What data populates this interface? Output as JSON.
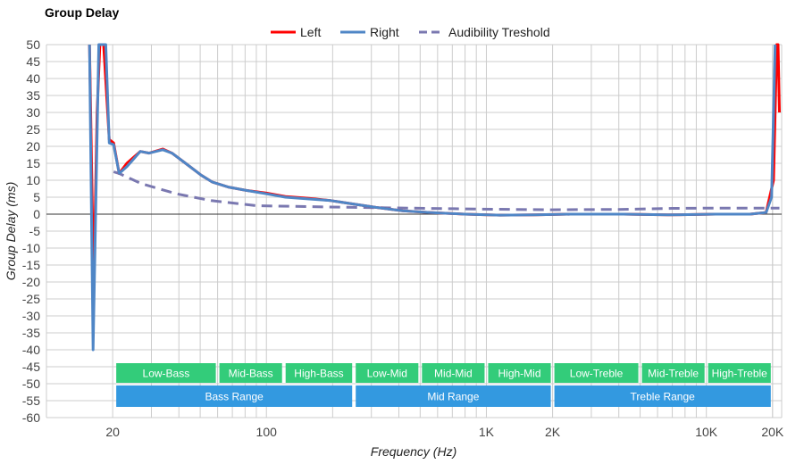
{
  "chart_data": {
    "type": "line",
    "title": "Group Delay",
    "xlabel": "Frequency (Hz)",
    "ylabel": "Group Delay (ms)",
    "x_scale": "log",
    "xlim": [
      10,
      22000
    ],
    "ylim": [
      -60,
      50
    ],
    "grid": true,
    "legend_placement": "top",
    "y_ticks": [
      50,
      45,
      40,
      35,
      30,
      25,
      20,
      15,
      10,
      5,
      0,
      -5,
      -10,
      -15,
      -20,
      -25,
      -30,
      -35,
      -40,
      -45,
      -50,
      -55,
      -60
    ],
    "x_ticks": [
      {
        "v": 20,
        "label": "20"
      },
      {
        "v": 100,
        "label": "100"
      },
      {
        "v": 1000,
        "label": "1K"
      },
      {
        "v": 2000,
        "label": "2K"
      },
      {
        "v": 10000,
        "label": "10K"
      },
      {
        "v": 20000,
        "label": "20K"
      }
    ],
    "series": [
      {
        "name": "Left",
        "color": "#ff0000",
        "style": "solid",
        "points": [
          [
            15.7,
            50
          ],
          [
            16.4,
            -22
          ],
          [
            17.0,
            30
          ],
          [
            17.5,
            50
          ],
          [
            18.2,
            50
          ],
          [
            19.3,
            22
          ],
          [
            20.2,
            21
          ],
          [
            21.4,
            12
          ],
          [
            23.2,
            15
          ],
          [
            26.7,
            18.5
          ],
          [
            29.3,
            18
          ],
          [
            33.8,
            19.2
          ],
          [
            37.2,
            18
          ],
          [
            42.9,
            15
          ],
          [
            50.5,
            11.5
          ],
          [
            56.6,
            9.5
          ],
          [
            67,
            8
          ],
          [
            81,
            7
          ],
          [
            100,
            6.2
          ],
          [
            122,
            5.2
          ],
          [
            154,
            4.7
          ],
          [
            196,
            4
          ],
          [
            248,
            3
          ],
          [
            314,
            2
          ],
          [
            416,
            1
          ],
          [
            549,
            0.5
          ],
          [
            796,
            0
          ],
          [
            1155,
            -0.3
          ],
          [
            1667,
            -0.2
          ],
          [
            2404,
            0
          ],
          [
            4200,
            0
          ],
          [
            6700,
            -0.2
          ],
          [
            11000,
            0
          ],
          [
            15800,
            0
          ],
          [
            18700,
            0.5
          ],
          [
            20200,
            10
          ],
          [
            20900,
            50
          ],
          [
            21200,
            50
          ],
          [
            21500,
            30
          ]
        ]
      },
      {
        "name": "Right",
        "color": "#4f86c6",
        "style": "solid",
        "points": [
          [
            15.7,
            50
          ],
          [
            16.3,
            -40
          ],
          [
            17.3,
            50
          ],
          [
            18.6,
            50
          ],
          [
            19.3,
            21
          ],
          [
            20.2,
            20.5
          ],
          [
            21.4,
            12
          ],
          [
            23.2,
            14
          ],
          [
            26.7,
            18.5
          ],
          [
            29.3,
            18
          ],
          [
            33.8,
            19
          ],
          [
            37.2,
            18
          ],
          [
            42.9,
            15
          ],
          [
            50.5,
            11.5
          ],
          [
            56.6,
            9.5
          ],
          [
            67,
            8
          ],
          [
            81,
            7
          ],
          [
            100,
            6
          ],
          [
            122,
            5
          ],
          [
            154,
            4.5
          ],
          [
            196,
            4
          ],
          [
            248,
            3
          ],
          [
            314,
            2
          ],
          [
            416,
            1
          ],
          [
            549,
            0.5
          ],
          [
            796,
            0
          ],
          [
            1155,
            -0.3
          ],
          [
            1667,
            -0.2
          ],
          [
            2404,
            0
          ],
          [
            4200,
            0
          ],
          [
            6700,
            -0.2
          ],
          [
            11000,
            0
          ],
          [
            15800,
            0
          ],
          [
            18700,
            0.5
          ],
          [
            19800,
            5
          ],
          [
            20550,
            50
          ]
        ]
      },
      {
        "name": "Audibility Treshold",
        "color": "#7a78b0",
        "style": "dashed",
        "points": [
          [
            20.2,
            12.5
          ],
          [
            21.4,
            12
          ],
          [
            27,
            9
          ],
          [
            39,
            6
          ],
          [
            56,
            4
          ],
          [
            90,
            2.5
          ],
          [
            158,
            2.2
          ],
          [
            250,
            2
          ],
          [
            440,
            1.8
          ],
          [
            920,
            1.5
          ],
          [
            1900,
            1.3
          ],
          [
            4000,
            1.4
          ],
          [
            7000,
            1.7
          ],
          [
            11000,
            1.8
          ],
          [
            21500,
            1.8
          ]
        ]
      }
    ],
    "bands": [
      {
        "label": "Low-Bass",
        "from": 20,
        "to": 60,
        "row": 1
      },
      {
        "label": "Mid-Bass",
        "from": 60,
        "to": 120,
        "row": 1
      },
      {
        "label": "High-Bass",
        "from": 120,
        "to": 250,
        "row": 1
      },
      {
        "label": "Low-Mid",
        "from": 250,
        "to": 500,
        "row": 1
      },
      {
        "label": "Mid-Mid",
        "from": 500,
        "to": 1000,
        "row": 1
      },
      {
        "label": "High-Mid",
        "from": 1000,
        "to": 2000,
        "row": 1
      },
      {
        "label": "Low-Treble",
        "from": 2000,
        "to": 5000,
        "row": 1
      },
      {
        "label": "Mid-Treble",
        "from": 5000,
        "to": 10000,
        "row": 1
      },
      {
        "label": "High-Treble",
        "from": 10000,
        "to": 20000,
        "row": 1
      },
      {
        "label": "Bass Range",
        "from": 20,
        "to": 250,
        "row": 2
      },
      {
        "label": "Mid Range",
        "from": 250,
        "to": 2000,
        "row": 2
      },
      {
        "label": "Treble Range",
        "from": 2000,
        "to": 20000,
        "row": 2
      }
    ],
    "band_colors": {
      "row1": "#33cc7a",
      "row2": "#3399e0"
    }
  }
}
